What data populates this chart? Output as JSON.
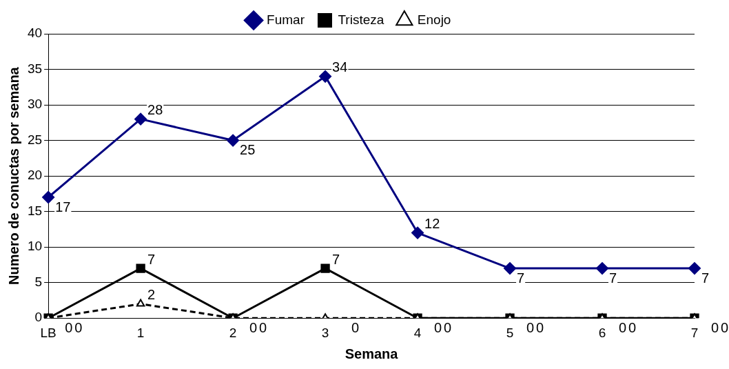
{
  "chart_data": {
    "type": "line",
    "xlabel": "Semana",
    "ylabel": "Numero de conuctas por semana",
    "categories": [
      "LB",
      "1",
      "2",
      "3",
      "4",
      "5",
      "6",
      "7"
    ],
    "series": [
      {
        "name": "Fumar",
        "color": "#000080",
        "marker": "diamond",
        "line_style": "solid",
        "values": [
          17,
          28,
          25,
          34,
          12,
          7,
          7,
          7
        ]
      },
      {
        "name": "Tristeza",
        "color": "#000000",
        "marker": "square",
        "line_style": "solid",
        "values": [
          0,
          7,
          0,
          7,
          0,
          0,
          0,
          0
        ]
      },
      {
        "name": "Enojo",
        "color": "#000000",
        "marker": "triangle",
        "line_style": "dashed",
        "values": [
          0,
          2,
          0,
          0,
          0,
          0,
          0,
          0
        ]
      }
    ],
    "ylim": [
      0,
      40
    ],
    "yticks": [
      0,
      5,
      10,
      15,
      20,
      25,
      30,
      35,
      40
    ],
    "grid": "y",
    "legend": "top",
    "data_labels": true
  }
}
